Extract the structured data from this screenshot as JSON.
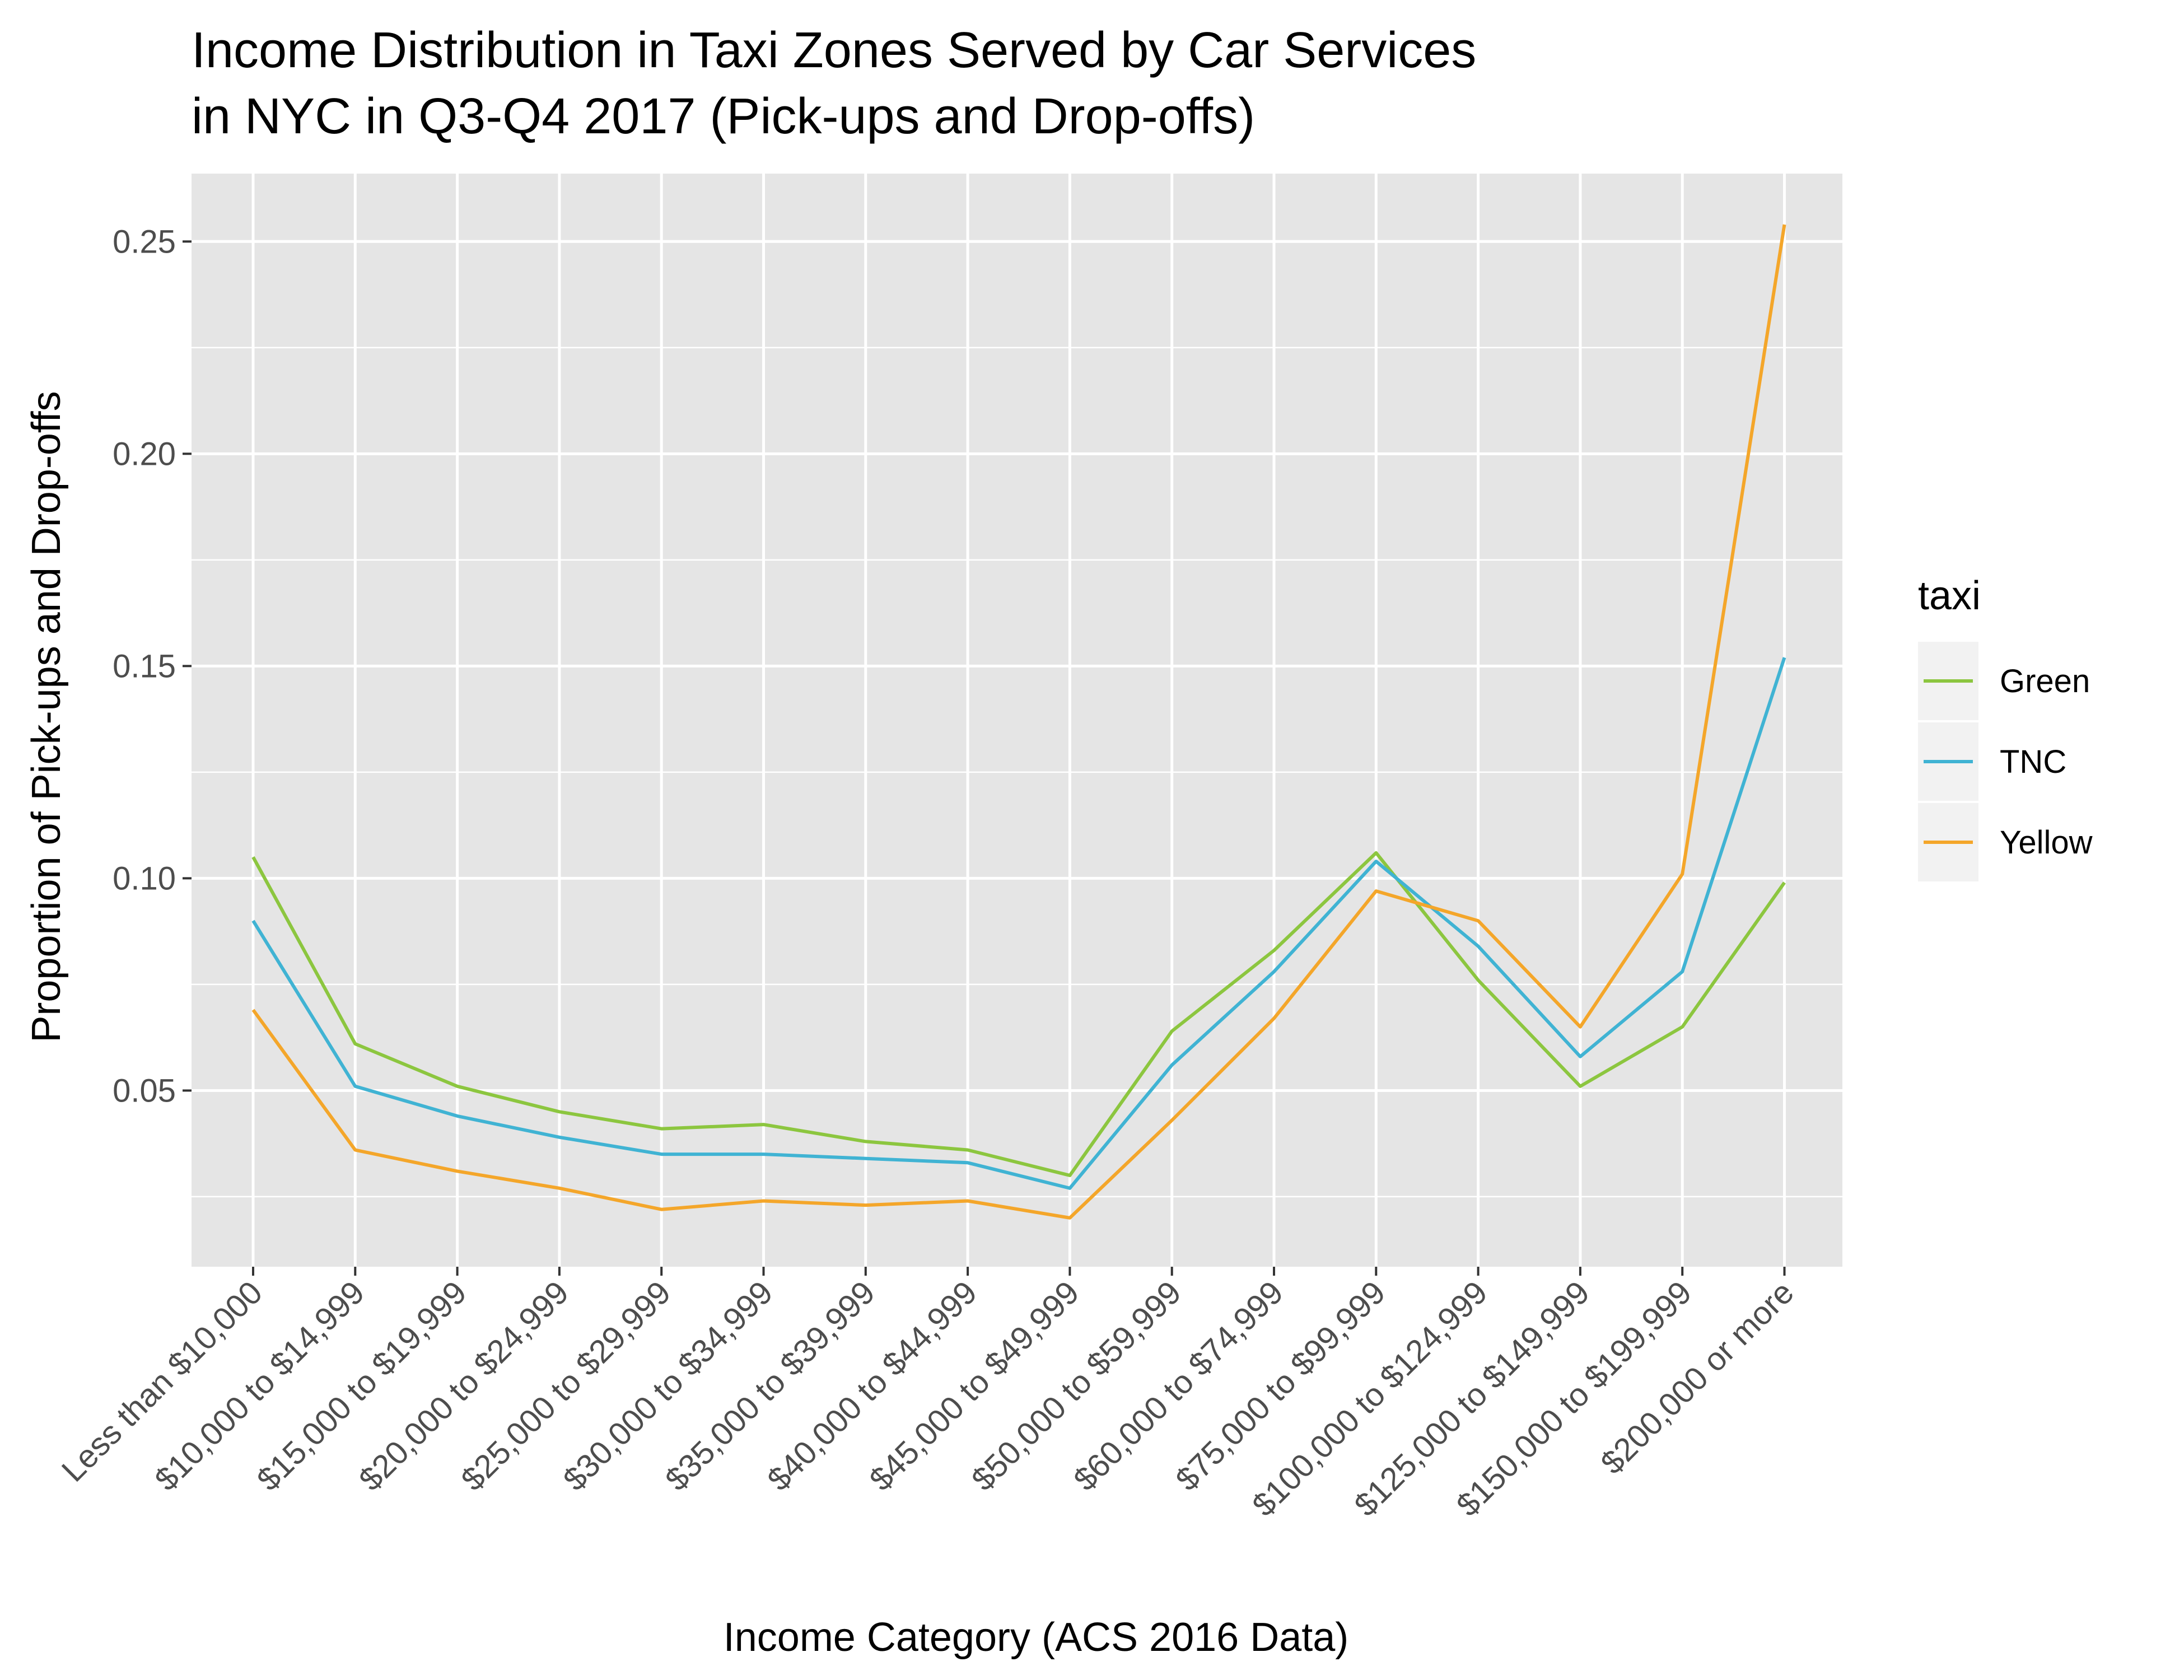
{
  "chart_data": {
    "type": "line",
    "title_lines": [
      "Income Distribution in Taxi Zones Served by Car Services",
      "in NYC in Q3-Q4 2017 (Pick-ups and Drop-offs)"
    ],
    "xlabel": "Income Category (ACS 2016 Data)",
    "ylabel": "Proportion of Pick-ups and Drop-offs",
    "ylim": [
      0.0085,
      0.266
    ],
    "y_ticks": [
      0.05,
      0.1,
      0.15,
      0.2,
      0.25
    ],
    "y_tick_labels": [
      "0.05",
      "0.10",
      "0.15",
      "0.20",
      "0.25"
    ],
    "grid": true,
    "background": "#e5e5e5",
    "categories": [
      "Less than $10,000",
      "$10,000 to $14,999",
      "$15,000 to $19,999",
      "$20,000 to $24,999",
      "$25,000 to $29,999",
      "$30,000 to $34,999",
      "$35,000 to $39,999",
      "$40,000 to $44,999",
      "$45,000 to $49,999",
      "$50,000 to $59,999",
      "$60,000 to $74,999",
      "$75,000 to $99,999",
      "$100,000 to $124,999",
      "$125,000 to $149,999",
      "$150,000 to $199,999",
      "$200,000 or more"
    ],
    "legend_title": "taxi",
    "legend_position": "right",
    "series": [
      {
        "name": "Green",
        "color": "#8cc63f",
        "values": [
          0.105,
          0.061,
          0.051,
          0.045,
          0.041,
          0.042,
          0.038,
          0.036,
          0.03,
          0.064,
          0.083,
          0.106,
          0.076,
          0.051,
          0.065,
          0.099
        ]
      },
      {
        "name": "TNC",
        "color": "#40b3d3",
        "values": [
          0.09,
          0.051,
          0.044,
          0.039,
          0.035,
          0.035,
          0.034,
          0.033,
          0.027,
          0.056,
          0.078,
          0.104,
          0.084,
          0.058,
          0.078,
          0.152
        ]
      },
      {
        "name": "Yellow",
        "color": "#f4a62a",
        "values": [
          0.069,
          0.036,
          0.031,
          0.027,
          0.022,
          0.024,
          0.023,
          0.024,
          0.02,
          0.043,
          0.067,
          0.097,
          0.09,
          0.065,
          0.101,
          0.254
        ]
      }
    ]
  }
}
